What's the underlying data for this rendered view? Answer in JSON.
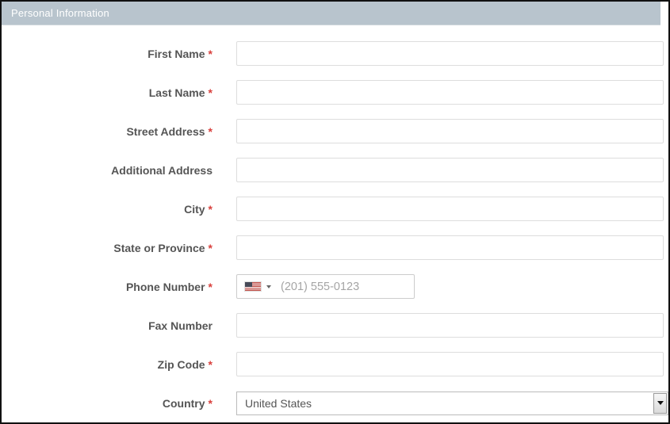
{
  "header": {
    "title": "Personal Information"
  },
  "form": {
    "required_marker": "*",
    "fields": [
      {
        "label": "First Name",
        "required": true
      },
      {
        "label": "Last Name",
        "required": true
      },
      {
        "label": "Street Address",
        "required": true
      },
      {
        "label": "Additional Address",
        "required": false
      },
      {
        "label": "City",
        "required": true
      },
      {
        "label": "State or Province",
        "required": true
      },
      {
        "label": "Phone Number",
        "required": true,
        "placeholder": "(201) 555-0123",
        "flag": "us-flag-icon"
      },
      {
        "label": "Fax Number",
        "required": false
      },
      {
        "label": "Zip Code",
        "required": true
      },
      {
        "label": "Country",
        "required": true,
        "value": "United States"
      }
    ]
  },
  "colors": {
    "header_bg": "#b8c4cd",
    "header_text": "#ffffff",
    "label_text": "#555555",
    "required_asterisk": "#d9413d",
    "input_border": "#dddddd",
    "placeholder_text": "#a5a5a5"
  }
}
